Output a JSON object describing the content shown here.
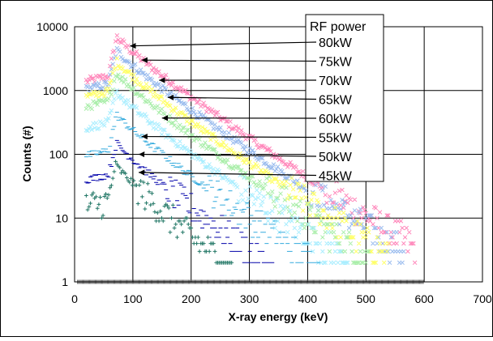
{
  "chart_data": {
    "type": "scatter",
    "title": "",
    "xlabel": "X-ray energy (keV)",
    "ylabel": "Counts (#)",
    "xlim": [
      0,
      700
    ],
    "ylim": [
      1,
      10000
    ],
    "yscale": "log",
    "x_ticks": [
      "0",
      "100",
      "200",
      "300",
      "400",
      "500",
      "600",
      "700"
    ],
    "y_ticks": [
      "1",
      "10",
      "100",
      "1000",
      "10000"
    ],
    "grid": true,
    "legend_title": "RF power",
    "legend_placement": "top-right, with arrows pointing to each series peak",
    "series": [
      {
        "name": "80kW",
        "color": "#ff88bb",
        "marker": "x",
        "peak_x": 72,
        "peak_y": 7000,
        "arrow_to": [
          95,
          5000
        ],
        "valley_y": 1400,
        "knee_x": 58,
        "end_x": 585,
        "end_y": 3.5
      },
      {
        "name": "75kW",
        "color": "#99bbee",
        "marker": "x",
        "peak_x": 72,
        "peak_y": 4300,
        "arrow_to": [
          115,
          3000
        ],
        "valley_y": 1050,
        "knee_x": 58,
        "end_x": 565,
        "end_y": 3
      },
      {
        "name": "70kW",
        "color": "#ffff66",
        "marker": "x",
        "peak_x": 72,
        "peak_y": 2900,
        "arrow_to": [
          145,
          1450
        ],
        "valley_y": 800,
        "knee_x": 58,
        "end_x": 540,
        "end_y": 2.5
      },
      {
        "name": "65kW",
        "color": "#aaeeaa",
        "marker": "x",
        "peak_x": 72,
        "peak_y": 1900,
        "arrow_to": [
          160,
          780
        ],
        "valley_y": 560,
        "knee_x": 58,
        "end_x": 505,
        "end_y": 2.3
      },
      {
        "name": "60kW",
        "color": "#aaeeff",
        "marker": "x",
        "peak_x": 72,
        "peak_y": 950,
        "arrow_to": [
          150,
          370
        ],
        "valley_y": 260,
        "knee_x": 58,
        "end_x": 470,
        "end_y": 2
      },
      {
        "name": "55kW",
        "color": "#33aadd",
        "marker": "-",
        "peak_x": 72,
        "peak_y": 420,
        "arrow_to": [
          115,
          190
        ],
        "valley_y": 95,
        "knee_x": 58,
        "end_x": 420,
        "end_y": 1.8
      },
      {
        "name": "50kW",
        "color": "#0000aa",
        "marker": "-",
        "peak_x": 72,
        "peak_y": 150,
        "arrow_to": [
          110,
          100
        ],
        "valley_y": 40,
        "knee_x": 58,
        "end_x": 340,
        "end_y": 1.6
      },
      {
        "name": "45kW",
        "color": "#227766",
        "marker": "+",
        "peak_x": 70,
        "peak_y": 70,
        "arrow_to": [
          110,
          52
        ],
        "valley_y": 15,
        "knee_x": 58,
        "end_x": 270,
        "end_y": 1.5
      }
    ]
  }
}
